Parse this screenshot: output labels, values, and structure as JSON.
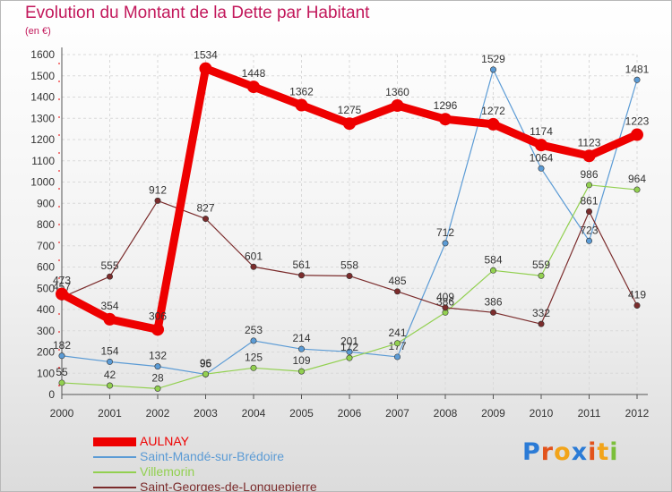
{
  "chart_data": {
    "type": "line",
    "title": "Evolution du Montant de la Dette par Habitant",
    "subtitle": "(en €)",
    "xlabel": "",
    "ylabel": "",
    "x": [
      "2000",
      "2001",
      "2002",
      "2003",
      "2004",
      "2005",
      "2006",
      "2007",
      "2008",
      "2009",
      "2010",
      "2011",
      "2012"
    ],
    "ylim": [
      0,
      1600
    ],
    "yticks": [
      0,
      100,
      200,
      300,
      400,
      500,
      600,
      700,
      800,
      900,
      1000,
      1100,
      1200,
      1300,
      1400,
      1500,
      1600
    ],
    "grid": true,
    "legend_position": "bottom-left",
    "series": [
      {
        "name": "AULNAY",
        "color": "#ee0000",
        "values": [
          473,
          354,
          306,
          1534,
          1448,
          1362,
          1275,
          1360,
          1296,
          1272,
          1174,
          1123,
          1223
        ]
      },
      {
        "name": "Saint-Mandé-sur-Brédoire",
        "color": "#5b9bd5",
        "values": [
          182,
          154,
          132,
          95,
          253,
          214,
          201,
          177,
          712,
          1529,
          1064,
          723,
          1481
        ]
      },
      {
        "name": "Villemorin",
        "color": "#92d050",
        "values": [
          55,
          42,
          28,
          96,
          125,
          109,
          172,
          241,
          386,
          584,
          559,
          986,
          964
        ]
      },
      {
        "name": "Saint-Georges-de-Longuepierre",
        "color": "#7b2c2c",
        "values": [
          457,
          555,
          912,
          827,
          601,
          561,
          558,
          485,
          409,
          386,
          332,
          861,
          419
        ]
      }
    ]
  },
  "brand": {
    "letters": [
      "P",
      "r",
      "o",
      "x",
      "i",
      "t",
      "i"
    ],
    "colors": [
      "#2b7bd6",
      "#e2531c",
      "#f2a41a",
      "#2b7bd6",
      "#e2531c",
      "#f2a41a",
      "#7bbf3a"
    ]
  }
}
